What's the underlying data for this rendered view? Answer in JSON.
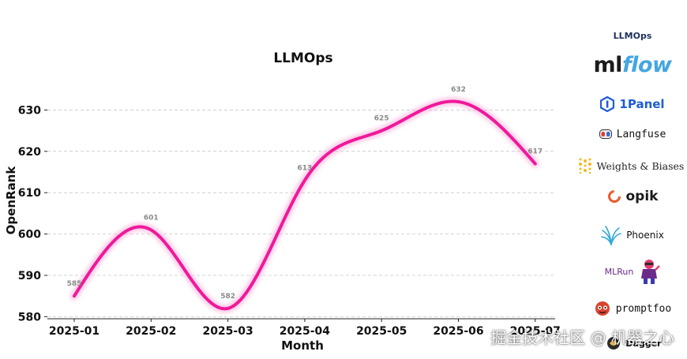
{
  "chart_data": {
    "type": "line",
    "title": "LLMOps",
    "xlabel": "Month",
    "ylabel": "OpenRank",
    "categories": [
      "2025-01",
      "2025-02",
      "2025-03",
      "2025-04",
      "2025-05",
      "2025-06",
      "2025-07"
    ],
    "series": [
      {
        "values": [
          585,
          601,
          582,
          613,
          625,
          632,
          617
        ],
        "color": "#f0189a"
      }
    ],
    "ylim": [
      579.5,
      636
    ],
    "yticks": [
      580,
      590,
      600,
      610,
      620,
      630
    ],
    "grid": true,
    "smooth": true
  },
  "logos": {
    "header": "LLMOps",
    "items": [
      {
        "name": "mlflow",
        "icon": "mlflow-wordmark"
      },
      {
        "name": "1Panel",
        "icon": "1panel-hexagon-icon"
      },
      {
        "name": "Langfuse",
        "icon": "langfuse-icon"
      },
      {
        "name": "Weights & Biases",
        "icon": "wandb-dots-icon"
      },
      {
        "name": "opik",
        "icon": "opik-ring-icon"
      },
      {
        "name": "Phoenix",
        "icon": "phoenix-bird-icon"
      },
      {
        "name": "MLRun",
        "icon": "mlrun-mascot-icon"
      },
      {
        "name": "promptfoo",
        "icon": "promptfoo-mascot-icon"
      },
      {
        "name": "Dagger",
        "icon": "dagger-icon"
      }
    ]
  },
  "watermark": "掘金技术社区 @ 机器之心"
}
